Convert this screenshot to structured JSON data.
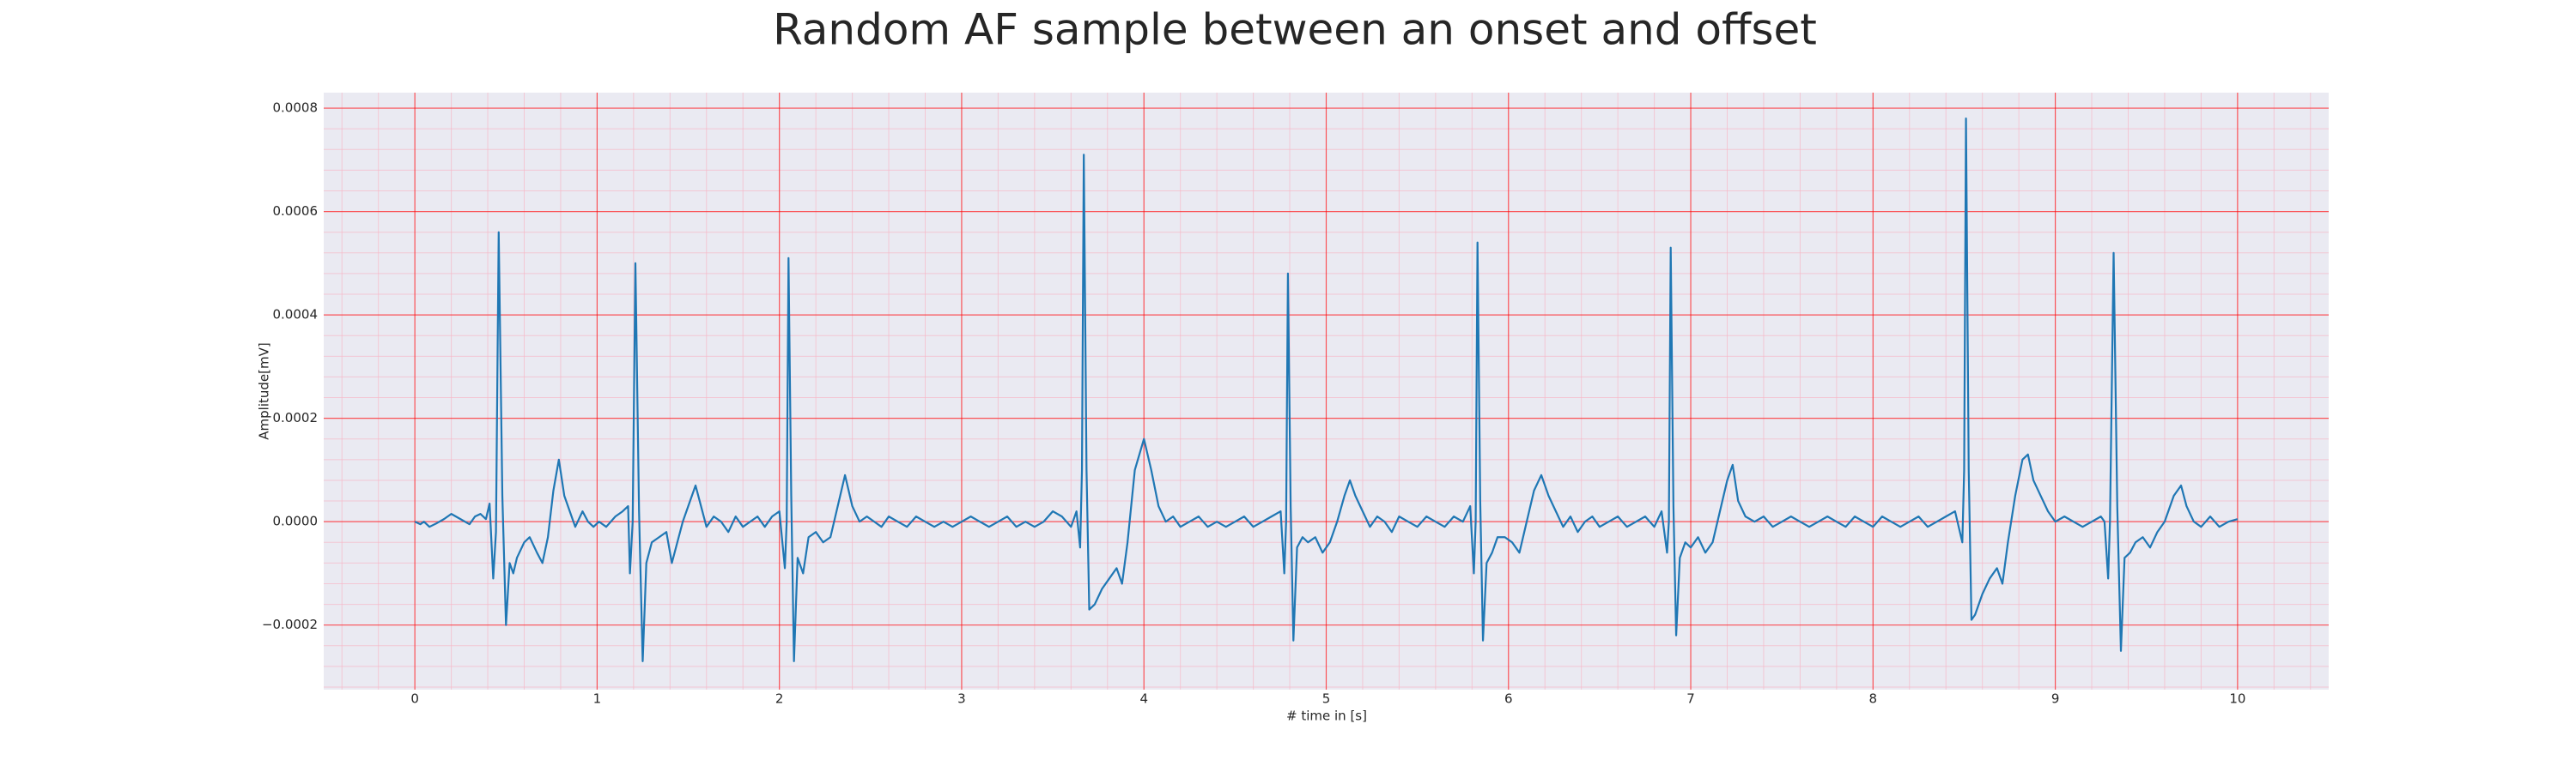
{
  "chart_data": {
    "type": "line",
    "title": "Random AF sample between an onset and offset",
    "xlabel": "# time in [s]",
    "ylabel": "Amplitude[mV]",
    "color": "#1f77b4",
    "background": "#eaeaf2",
    "grid": true,
    "grid_color": "#ff0000",
    "minor_grid": true,
    "minor_grid_color": "#f7b8c8",
    "xlim": [
      -0.5,
      10.5
    ],
    "ylim": [
      -0.000325,
      0.00083
    ],
    "xticks": [
      0,
      1,
      2,
      3,
      4,
      5,
      6,
      7,
      8,
      9,
      10
    ],
    "yticks": [
      {
        "value": -0.0002,
        "label": "−0.0002"
      },
      {
        "value": 0,
        "label": "0.0000"
      },
      {
        "value": 0.0002,
        "label": "0.0002"
      },
      {
        "value": 0.0004,
        "label": "0.0004"
      },
      {
        "value": 0.0006,
        "label": "0.0006"
      },
      {
        "value": 0.0008,
        "label": "0.0008"
      }
    ],
    "x": [
      0,
      0.03,
      0.05,
      0.08,
      0.12,
      0.16,
      0.2,
      0.25,
      0.3,
      0.33,
      0.36,
      0.39,
      0.41,
      0.43,
      0.445,
      0.46,
      0.48,
      0.5,
      0.52,
      0.54,
      0.56,
      0.6,
      0.63,
      0.67,
      0.7,
      0.73,
      0.76,
      0.79,
      0.82,
      0.85,
      0.88,
      0.92,
      0.95,
      0.98,
      1.01,
      1.05,
      1.1,
      1.14,
      1.17,
      1.18,
      1.195,
      1.21,
      1.23,
      1.25,
      1.27,
      1.3,
      1.34,
      1.38,
      1.41,
      1.44,
      1.47,
      1.51,
      1.54,
      1.57,
      1.6,
      1.64,
      1.68,
      1.72,
      1.76,
      1.8,
      1.84,
      1.88,
      1.92,
      1.96,
      2.0,
      2.03,
      2.04,
      2.05,
      2.065,
      2.08,
      2.1,
      2.13,
      2.16,
      2.2,
      2.24,
      2.28,
      2.32,
      2.36,
      2.4,
      2.44,
      2.48,
      2.52,
      2.56,
      2.6,
      2.65,
      2.7,
      2.75,
      2.8,
      2.85,
      2.9,
      2.95,
      3.0,
      3.05,
      3.1,
      3.15,
      3.2,
      3.25,
      3.3,
      3.35,
      3.4,
      3.45,
      3.5,
      3.55,
      3.6,
      3.63,
      3.65,
      3.66,
      3.67,
      3.685,
      3.7,
      3.73,
      3.77,
      3.81,
      3.85,
      3.88,
      3.91,
      3.95,
      4.0,
      4.04,
      4.08,
      4.12,
      4.16,
      4.2,
      4.25,
      4.3,
      4.35,
      4.4,
      4.45,
      4.5,
      4.55,
      4.6,
      4.65,
      4.7,
      4.75,
      4.77,
      4.78,
      4.79,
      4.805,
      4.82,
      4.84,
      4.87,
      4.9,
      4.94,
      4.98,
      5.02,
      5.06,
      5.1,
      5.13,
      5.16,
      5.2,
      5.24,
      5.28,
      5.32,
      5.36,
      5.4,
      5.45,
      5.5,
      5.55,
      5.6,
      5.65,
      5.7,
      5.75,
      5.79,
      5.81,
      5.82,
      5.83,
      5.845,
      5.86,
      5.88,
      5.91,
      5.94,
      5.98,
      6.02,
      6.06,
      6.1,
      6.14,
      6.18,
      6.22,
      6.26,
      6.3,
      6.34,
      6.38,
      6.42,
      6.46,
      6.5,
      6.55,
      6.6,
      6.65,
      6.7,
      6.75,
      6.8,
      6.84,
      6.87,
      6.88,
      6.89,
      6.905,
      6.92,
      6.94,
      6.97,
      7.0,
      7.04,
      7.08,
      7.12,
      7.16,
      7.2,
      7.23,
      7.26,
      7.3,
      7.35,
      7.4,
      7.45,
      7.5,
      7.55,
      7.6,
      7.65,
      7.7,
      7.75,
      7.8,
      7.85,
      7.9,
      7.95,
      8.0,
      8.05,
      8.1,
      8.15,
      8.2,
      8.25,
      8.3,
      8.35,
      8.4,
      8.45,
      8.49,
      8.5,
      8.51,
      8.525,
      8.54,
      8.56,
      8.6,
      8.64,
      8.68,
      8.71,
      8.74,
      8.78,
      8.82,
      8.85,
      8.88,
      8.92,
      8.96,
      9.0,
      9.05,
      9.1,
      9.15,
      9.2,
      9.25,
      9.27,
      9.29,
      9.3,
      9.32,
      9.34,
      9.36,
      9.38,
      9.41,
      9.44,
      9.48,
      9.52,
      9.56,
      9.6,
      9.65,
      9.69,
      9.72,
      9.76,
      9.8,
      9.85,
      9.9,
      9.95,
      10.0
    ],
    "values": [
      0,
      -5e-06,
      0,
      -1e-05,
      -3e-06,
      5e-06,
      1.5e-05,
      5e-06,
      -5e-06,
      1e-05,
      1.5e-05,
      5e-06,
      3.5e-05,
      -0.00011,
      -2e-05,
      0.00056,
      5e-05,
      -0.0002,
      -8e-05,
      -0.0001,
      -7e-05,
      -4e-05,
      -3e-05,
      -6e-05,
      -8e-05,
      -3e-05,
      6e-05,
      0.00012,
      5e-05,
      2e-05,
      -1e-05,
      2e-05,
      0,
      -1e-05,
      0,
      -1e-05,
      1e-05,
      2e-05,
      3e-05,
      -0.0001,
      0,
      0.0005,
      2e-05,
      -0.00027,
      -8e-05,
      -4e-05,
      -3e-05,
      -2e-05,
      -8e-05,
      -4e-05,
      0,
      4e-05,
      7e-05,
      3e-05,
      -1e-05,
      1e-05,
      0,
      -2e-05,
      1e-05,
      -1e-05,
      0,
      1e-05,
      -1e-05,
      1e-05,
      2e-05,
      -9e-05,
      0,
      0.00051,
      5e-05,
      -0.00027,
      -7e-05,
      -0.0001,
      -3e-05,
      -2e-05,
      -4e-05,
      -3e-05,
      3e-05,
      9e-05,
      3e-05,
      0,
      1e-05,
      0,
      -1e-05,
      1e-05,
      0,
      -1e-05,
      1e-05,
      0,
      -1e-05,
      0,
      -1e-05,
      0,
      1e-05,
      0,
      -1e-05,
      0,
      1e-05,
      -1e-05,
      0,
      -1e-05,
      0,
      2e-05,
      1e-05,
      -1e-05,
      2e-05,
      -5e-05,
      0.0001,
      0.00071,
      0.0001,
      -0.00017,
      -0.00016,
      -0.00013,
      -0.00011,
      -9e-05,
      -0.00012,
      -4e-05,
      0.0001,
      0.00016,
      0.0001,
      3e-05,
      0,
      1e-05,
      -1e-05,
      0,
      1e-05,
      -1e-05,
      0,
      -1e-05,
      0,
      1e-05,
      -1e-05,
      0,
      1e-05,
      2e-05,
      -0.0001,
      0,
      0.00048,
      3e-05,
      -0.00023,
      -5e-05,
      -3e-05,
      -4e-05,
      -3e-05,
      -6e-05,
      -4e-05,
      0,
      5e-05,
      8e-05,
      5e-05,
      2e-05,
      -1e-05,
      1e-05,
      0,
      -2e-05,
      1e-05,
      0,
      -1e-05,
      1e-05,
      0,
      -1e-05,
      1e-05,
      0,
      3e-05,
      -0.0001,
      0,
      0.00054,
      4e-05,
      -0.00023,
      -8e-05,
      -6e-05,
      -3e-05,
      -3e-05,
      -4e-05,
      -6e-05,
      0,
      6e-05,
      9e-05,
      5e-05,
      2e-05,
      -1e-05,
      1e-05,
      -2e-05,
      0,
      1e-05,
      -1e-05,
      0,
      1e-05,
      -1e-05,
      0,
      1e-05,
      -1e-05,
      2e-05,
      -6e-05,
      0,
      0.00053,
      3e-05,
      -0.00022,
      -7e-05,
      -4e-05,
      -5e-05,
      -3e-05,
      -6e-05,
      -4e-05,
      2e-05,
      8e-05,
      0.00011,
      4e-05,
      1e-05,
      0,
      1e-05,
      -1e-05,
      0,
      1e-05,
      0,
      -1e-05,
      0,
      1e-05,
      0,
      -1e-05,
      1e-05,
      0,
      -1e-05,
      1e-05,
      0,
      -1e-05,
      0,
      1e-05,
      -1e-05,
      0,
      1e-05,
      2e-05,
      -4e-05,
      0.0001,
      0.00078,
      0.0001,
      -0.00019,
      -0.00018,
      -0.00014,
      -0.00011,
      -9e-05,
      -0.00012,
      -4e-05,
      5e-05,
      0.00012,
      0.00013,
      8e-05,
      5e-05,
      2e-05,
      0,
      1e-05,
      0,
      -1e-05,
      0,
      1e-05,
      0,
      -0.00011,
      0,
      0.00052,
      3e-05,
      -0.00025,
      -7e-05,
      -6e-05,
      -4e-05,
      -3e-05,
      -5e-05,
      -2e-05,
      0,
      5e-05,
      7e-05,
      3e-05,
      0,
      -1e-05,
      1e-05,
      -1e-05,
      0,
      5e-06
    ]
  }
}
